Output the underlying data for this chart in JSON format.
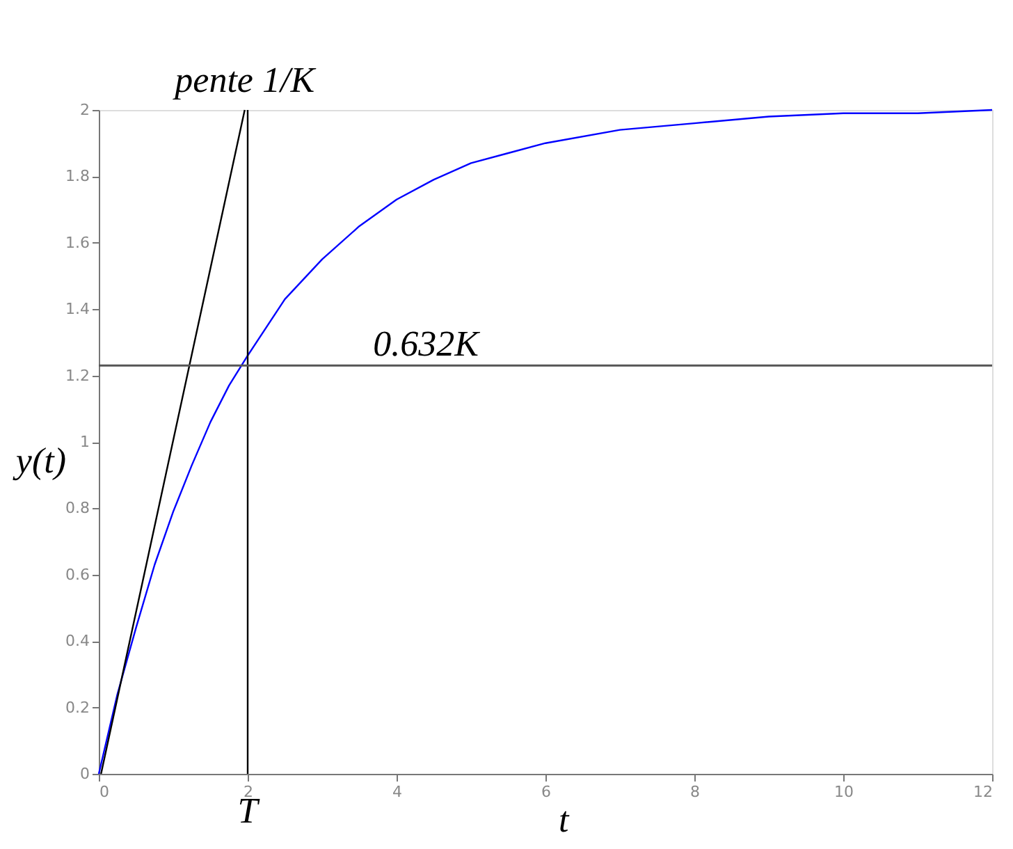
{
  "chart_data": {
    "type": "line",
    "xlabel": "t",
    "ylabel": "y(t)",
    "xlim": [
      0,
      12
    ],
    "xticks": [
      0,
      2,
      4,
      6,
      8,
      10,
      12
    ],
    "ylim": [
      0,
      2
    ],
    "yticks": [
      0,
      0.2,
      0.4,
      0.6,
      0.8,
      1,
      1.2,
      1.4,
      1.6,
      1.8,
      2
    ],
    "series": [
      {
        "color": "#0000ff",
        "x": [
          0,
          0.25,
          0.5,
          0.75,
          1,
          1.25,
          1.5,
          1.75,
          2,
          2.5,
          3,
          3.5,
          4,
          4.5,
          5,
          5.5,
          6,
          7,
          8,
          9,
          10,
          11,
          12
        ],
        "values": [
          0,
          0.24,
          0.44,
          0.63,
          0.79,
          0.93,
          1.06,
          1.17,
          1.26,
          1.43,
          1.55,
          1.65,
          1.73,
          1.79,
          1.84,
          1.87,
          1.9,
          1.94,
          1.96,
          1.98,
          1.99,
          1.99,
          2.0
        ]
      },
      {
        "color": "#000000",
        "x": [
          0.03,
          1.96
        ],
        "values": [
          0,
          2
        ]
      }
    ],
    "ref_lines": [
      {
        "axis": "x",
        "value": 2,
        "label": "T",
        "color": "#000000"
      },
      {
        "axis": "y",
        "value": 1.23,
        "label": "0.632K",
        "color": "#555555"
      }
    ],
    "annotations": [
      {
        "text": "pente 1/K",
        "x": 1.96,
        "y": 2
      }
    ],
    "grid": false,
    "marker": "none",
    "line_style": "solid"
  }
}
